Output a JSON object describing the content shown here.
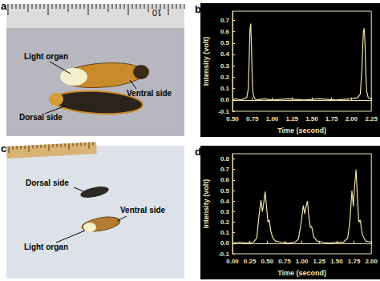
{
  "photos": [
    {
      "panel": "a",
      "ruler_label": "10",
      "labels": [
        "Light organ",
        "Ventral side",
        "Dorsal side"
      ]
    },
    {
      "panel": "c",
      "labels": [
        "Dorsal side",
        "Ventral side",
        "Light organ"
      ]
    }
  ],
  "chart_data": [
    {
      "type": "line",
      "title": "b",
      "x_label": "Time (second)",
      "y_label": "Intensity (volt)",
      "x": [
        0.5,
        0.55,
        0.6,
        0.65,
        0.68,
        0.7,
        0.71,
        0.72,
        0.73,
        0.74,
        0.75,
        0.76,
        0.78,
        0.8,
        0.9,
        1.0,
        1.2,
        1.4,
        1.6,
        1.8,
        2.0,
        2.08,
        2.11,
        2.13,
        2.14,
        2.15,
        2.16,
        2.17,
        2.18,
        2.19,
        2.21,
        2.25
      ],
      "values": [
        0.0,
        0.01,
        0.0,
        0.01,
        0.02,
        0.1,
        0.35,
        0.62,
        0.67,
        0.45,
        0.15,
        0.05,
        0.01,
        0.0,
        0.01,
        0.0,
        0.01,
        0.0,
        0.01,
        0.0,
        0.01,
        0.02,
        0.05,
        0.25,
        0.45,
        0.6,
        0.63,
        0.5,
        0.25,
        0.08,
        0.02,
        0.01
      ],
      "color": "#ede3a6",
      "xlim": [
        0.5,
        2.25
      ],
      "xticks": [
        {
          "value": 0.5,
          "label": "0.50"
        },
        0.75,
        {
          "value": 1.0,
          "label": "1.00"
        },
        1.25,
        {
          "value": 1.5,
          "label": "1.50"
        },
        1.75,
        {
          "value": 2.0,
          "label": "2.00"
        },
        2.25
      ],
      "ylim": [
        -0.1,
        0.78
      ],
      "yticks": [
        -0.1,
        {
          "value": 0,
          "label": "0.0"
        },
        0.1,
        0.2,
        0.3,
        0.4,
        0.5,
        0.6,
        0.7
      ],
      "grid": false
    },
    {
      "type": "line",
      "title": "d",
      "x_label": "Time (second)",
      "y_label": "Intensity (volt)",
      "x": [
        0.0,
        0.1,
        0.2,
        0.3,
        0.35,
        0.38,
        0.41,
        0.43,
        0.45,
        0.47,
        0.49,
        0.51,
        0.53,
        0.55,
        0.58,
        0.62,
        0.7,
        0.8,
        0.9,
        0.95,
        0.99,
        1.02,
        1.04,
        1.06,
        1.08,
        1.1,
        1.12,
        1.14,
        1.17,
        1.22,
        1.3,
        1.4,
        1.5,
        1.6,
        1.66,
        1.69,
        1.72,
        1.74,
        1.76,
        1.78,
        1.8,
        1.82,
        1.84,
        1.87,
        1.92,
        2.0
      ],
      "values": [
        0,
        0.01,
        0,
        0.01,
        0.05,
        0.25,
        0.41,
        0.3,
        0.38,
        0.49,
        0.35,
        0.2,
        0.22,
        0.12,
        0.05,
        0.02,
        0.01,
        0,
        0.01,
        0.04,
        0.2,
        0.36,
        0.28,
        0.35,
        0.4,
        0.25,
        0.15,
        0.16,
        0.06,
        0.02,
        0.01,
        0,
        0.01,
        0.01,
        0.05,
        0.2,
        0.5,
        0.35,
        0.55,
        0.7,
        0.42,
        0.2,
        0.22,
        0.08,
        0.02,
        0.01
      ],
      "color": "#ede3a6",
      "xlim": [
        0.0,
        2.0
      ],
      "xticks": [
        {
          "value": 0,
          "label": "0.00"
        },
        0.25,
        {
          "value": 0.5,
          "label": "0.50"
        },
        0.75,
        {
          "value": 1.0,
          "label": "1.00"
        },
        1.25,
        {
          "value": 1.5,
          "label": "1.50"
        },
        1.75,
        {
          "value": 2.0,
          "label": "2.00"
        }
      ],
      "ylim": [
        -0.1,
        0.85
      ],
      "yticks": [
        -0.1,
        {
          "value": 0,
          "label": "0.0"
        },
        0.1,
        0.2,
        0.3,
        0.4,
        0.5,
        0.6,
        0.7,
        0.8
      ],
      "grid": false
    }
  ]
}
